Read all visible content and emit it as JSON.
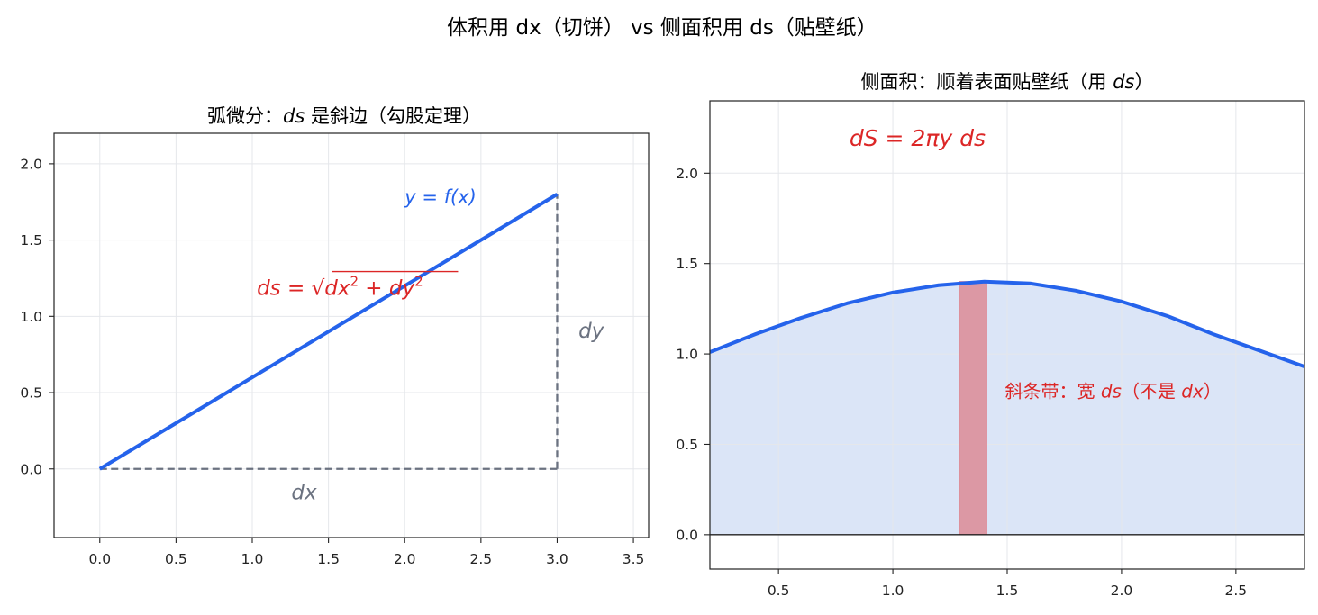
{
  "suptitle": "体积用 dx（切饼） vs 侧面积用 ds（贴壁纸）",
  "chart_data": [
    {
      "type": "line",
      "title": "弧微分：ds 是斜边（勾股定理）",
      "title_parts": {
        "prefix": "弧微分：",
        "math": "ds",
        "suffix": " 是斜边（勾股定理）"
      },
      "xlim": [
        -0.3,
        3.6
      ],
      "ylim": [
        -0.45,
        2.2
      ],
      "xticks": [
        "0.0",
        "0.5",
        "1.0",
        "1.5",
        "2.0",
        "2.5",
        "3.0",
        "3.5"
      ],
      "yticks": [
        "0.0",
        "0.5",
        "1.0",
        "1.5",
        "2.0"
      ],
      "grid": true,
      "series": [
        {
          "name": "y = f(x)",
          "x": [
            0,
            3
          ],
          "y": [
            0,
            1.8
          ],
          "color": "#2563eb"
        }
      ],
      "legs": {
        "dx": {
          "x": [
            0,
            3
          ],
          "y": [
            0,
            0
          ]
        },
        "dy": {
          "x": [
            3,
            3
          ],
          "y": [
            0,
            1.8
          ]
        },
        "color": "#6b7280"
      },
      "annotations": {
        "curve_label": "y = f(x)",
        "leg_dx_label": "dx",
        "leg_dy_label": "dy",
        "ds_formula": {
          "lhs": "ds",
          "eq": " = ",
          "rad_a": "dx",
          "sup": "2",
          "plus": " + ",
          "rad_b": "dy",
          "color": "#dc2626"
        }
      }
    },
    {
      "type": "area",
      "title": "侧面积：顺着表面贴壁纸（用 ds）",
      "title_parts": {
        "prefix": "侧面积：顺着表面贴壁纸（用 ",
        "math": "ds",
        "suffix": "）"
      },
      "xlim": [
        0.2,
        2.8
      ],
      "ylim": [
        -0.19,
        2.4
      ],
      "xticks": [
        "0.5",
        "1.0",
        "1.5",
        "2.0",
        "2.5"
      ],
      "yticks": [
        "0.0",
        "0.5",
        "1.0",
        "1.5",
        "2.0"
      ],
      "grid": true,
      "curve": {
        "x": [
          0.2,
          0.4,
          0.6,
          0.8,
          1.0,
          1.2,
          1.4,
          1.6,
          1.8,
          2.0,
          2.2,
          2.4,
          2.6,
          2.8
        ],
        "y": [
          1.01,
          1.11,
          1.2,
          1.28,
          1.34,
          1.38,
          1.4,
          1.39,
          1.35,
          1.29,
          1.21,
          1.11,
          1.02,
          0.93
        ],
        "line_color": "#2563eb",
        "fill_color": "#dbe5f7"
      },
      "strip": {
        "x0": 1.29,
        "x1": 1.41,
        "top": 1.4,
        "fill": "#dc98a4",
        "edge": "#e07b86"
      },
      "annotations": {
        "dS_formula": "dS = 2πy ds",
        "strip_label": {
          "prefix": "斜条带：宽 ",
          "m1": "ds",
          "mid": "（不是 ",
          "m2": "dx",
          "end": "）"
        },
        "color": "#dc2626"
      }
    }
  ]
}
